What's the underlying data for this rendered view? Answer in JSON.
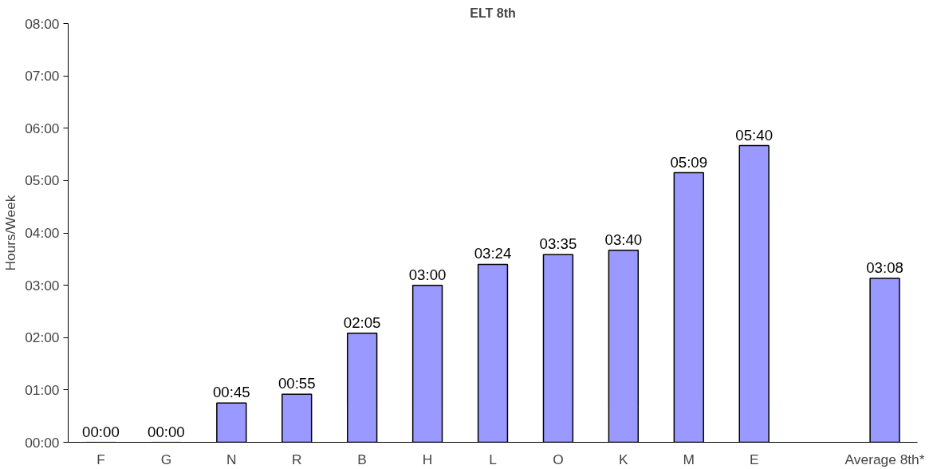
{
  "chart_data": {
    "type": "bar",
    "title": "ELT 8th",
    "ylabel": "Hours/Week",
    "categories": [
      "F",
      "G",
      "N",
      "R",
      "B",
      "H",
      "L",
      "O",
      "K",
      "M",
      "E",
      null,
      "Average 8th*"
    ],
    "values": [
      0,
      0,
      0.75,
      0.9167,
      2.0833,
      3,
      3.4,
      3.5833,
      3.6667,
      5.15,
      5.6667,
      null,
      3.1333
    ],
    "value_labels": [
      "00:00",
      "00:00",
      "00:45",
      "00:55",
      "02:05",
      "03:00",
      "03:24",
      "03:35",
      "03:40",
      "05:09",
      "05:40",
      null,
      "03:08"
    ],
    "color": "#9999ff",
    "ylim": [
      0,
      8
    ],
    "yticks": [
      {
        "value": 0,
        "label": "00:00"
      },
      {
        "value": 1,
        "label": "01:00"
      },
      {
        "value": 2,
        "label": "02:00"
      },
      {
        "value": 3,
        "label": "03:00"
      },
      {
        "value": 4,
        "label": "04:00"
      },
      {
        "value": 5,
        "label": "05:00"
      },
      {
        "value": 6,
        "label": "06:00"
      },
      {
        "value": 7,
        "label": "07:00"
      },
      {
        "value": 8,
        "label": "08:00"
      }
    ],
    "grid": false
  }
}
